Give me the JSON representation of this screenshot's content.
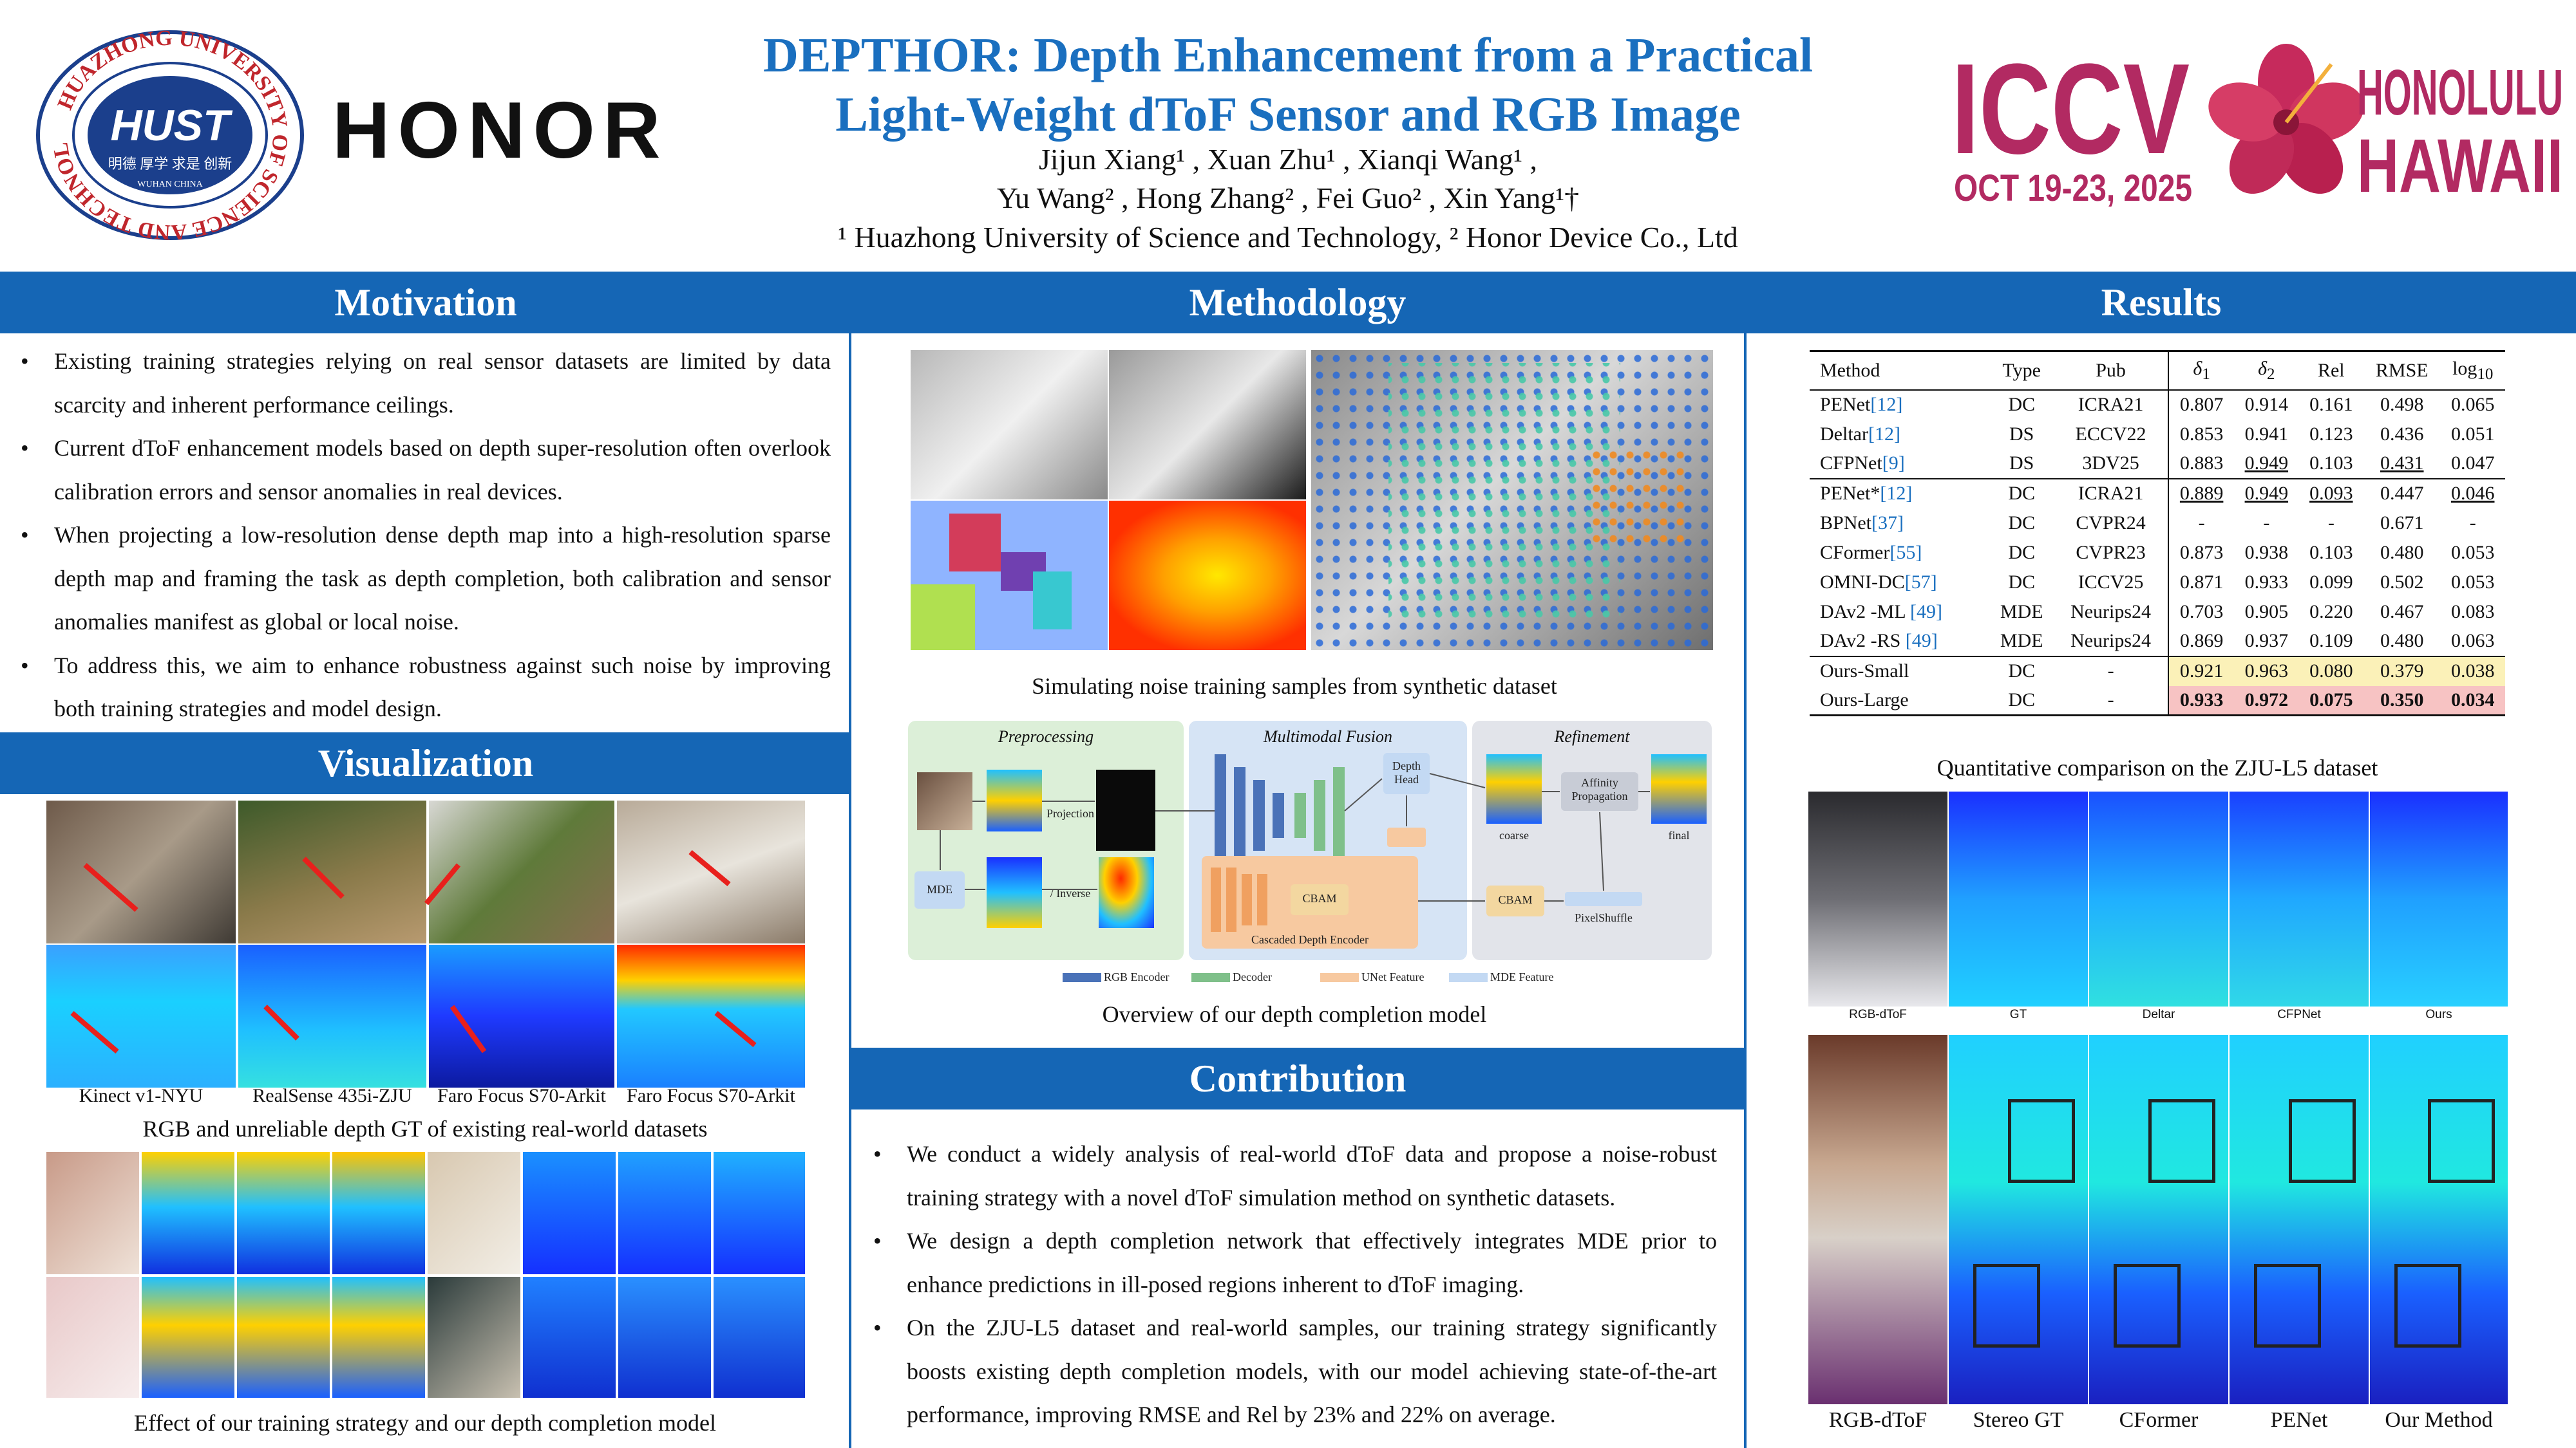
{
  "header": {
    "title_line1": "DEPTHOR: Depth Enhancement from a Practical",
    "title_line2": "Light-Weight dToF Sensor and RGB Image",
    "authors_line1": "Jijun Xiang¹ , Xuan Zhu¹ , Xianqi Wang¹ ,",
    "authors_line2": "Yu Wang² , Hong Zhang² , Fei Guo² , Xin Yang¹†",
    "affiliations": "¹ Huazhong University of Science and Technology, ² Honor Device Co., Ltd",
    "hust_logo_text": "HUST",
    "hust_logo_motto": "明德 厚学 求是 创新",
    "hust_logo_city": "WUHAN CHINA",
    "hust_logo_ring": "HUAZHONG UNIVERSITY OF SCIENCE AND TECHNOLOGY",
    "honor_logo": "HONOR",
    "iccv_logo": "ICCV",
    "iccv_dates": "OCT 19-23, 2025",
    "iccv_city": "HONOLULU",
    "iccv_state": "HAWAII"
  },
  "motivation": {
    "heading": "Motivation",
    "bullets": [
      "Existing training strategies relying on real sensor datasets are limited by data scarcity and inherent performance ceilings.",
      "Current dToF enhancement models based on depth super-resolution often overlook calibration errors and sensor anomalies in real devices.",
      "When projecting a low-resolution dense depth map into a high-resolution sparse depth map and framing the task as depth completion, both calibration and sensor anomalies manifest as global or local noise.",
      "To address this, we aim to enhance robustness against such noise by improving both training strategies and model design."
    ]
  },
  "visualization": {
    "heading": "Visualization",
    "datasets": [
      "Kinect v1-NYU",
      "RealSense 435i-ZJU",
      "Faro Focus S70-Arkit",
      "Faro Focus S70-Arkit"
    ],
    "caption1": "RGB and unreliable depth GT of existing real-world datasets",
    "caption2": "Effect of our training strategy and our depth completion model"
  },
  "methodology": {
    "heading": "Methodology",
    "caption1": "Simulating noise training samples from synthetic dataset",
    "caption2": "Overview of our depth completion model",
    "diagram": {
      "stage1": "Preprocessing",
      "stage2": "Multimodal Fusion",
      "stage3": "Refinement",
      "projection": "Projection",
      "mde": "MDE",
      "inverse": "/ Inverse",
      "cbam1": "CBAM",
      "cascaded": "Cascaded Depth Encoder",
      "depth_head": "Depth Head",
      "cbam2": "CBAM",
      "affinity": "Affinity Propagation",
      "pixelshuffle": "PixelShuffle",
      "coarse": "coarse",
      "final": "final",
      "legend": [
        "RGB Encoder",
        "Decoder",
        "UNet Feature",
        "MDE Feature"
      ]
    }
  },
  "contribution": {
    "heading": "Contribution",
    "bullets": [
      "We conduct a widely analysis of real-world dToF data and propose a noise-robust training strategy with a novel dToF simulation method on synthetic datasets.",
      "We design a depth completion network that effectively integrates MDE prior to enhance predictions in ill-posed regions inherent to dToF imaging.",
      "On the ZJU-L5 dataset and real-world samples, our training strategy significantly boosts existing depth completion models, with our model achieving state-of-the-art performance, improving RMSE and Rel by 23% and 22% on average."
    ]
  },
  "results": {
    "heading": "Results",
    "table_caption": "Quantitative comparison on the ZJU-L5 dataset",
    "columns": [
      "Method",
      "Type",
      "Pub",
      "δ",
      "δ",
      "Rel",
      "RMSE",
      "log"
    ],
    "col_sub": [
      "",
      "",
      "",
      "1",
      "2",
      "",
      "",
      "10"
    ],
    "rows": [
      {
        "m": "PENet",
        "c": "[12]",
        "type": "DC",
        "pub": "ICRA21",
        "d1": "0.807",
        "d2": "0.914",
        "rel": "0.161",
        "rmse": "0.498",
        "log": "0.065"
      },
      {
        "m": "Deltar",
        "c": "[12]",
        "type": "DS",
        "pub": "ECCV22",
        "d1": "0.853",
        "d2": "0.941",
        "rel": "0.123",
        "rmse": "0.436",
        "log": "0.051"
      },
      {
        "m": "CFPNet",
        "c": "[9]",
        "type": "DS",
        "pub": "3DV25",
        "d1": "0.883",
        "d2": "0.949",
        "rel": "0.103",
        "rmse": "0.431",
        "log": "0.047"
      },
      {
        "m": "PENet*",
        "c": "[12]",
        "type": "DC",
        "pub": "ICRA21",
        "d1": "0.889",
        "d2": "0.949",
        "rel": "0.093",
        "rmse": "0.447",
        "log": "0.046"
      },
      {
        "m": "BPNet",
        "c": "[37]",
        "type": "DC",
        "pub": "CVPR24",
        "d1": "-",
        "d2": "-",
        "rel": "-",
        "rmse": "0.671",
        "log": "-"
      },
      {
        "m": "CFormer",
        "c": "[55]",
        "type": "DC",
        "pub": "CVPR23",
        "d1": "0.873",
        "d2": "0.938",
        "rel": "0.103",
        "rmse": "0.480",
        "log": "0.053"
      },
      {
        "m": "OMNI-DC",
        "c": "[57]",
        "type": "DC",
        "pub": "ICCV25",
        "d1": "0.871",
        "d2": "0.933",
        "rel": "0.099",
        "rmse": "0.502",
        "log": "0.053"
      },
      {
        "m": "DAv2 -ML ",
        "c": "[49]",
        "type": "MDE",
        "pub": "Neurips24",
        "d1": "0.703",
        "d2": "0.905",
        "rel": "0.220",
        "rmse": "0.467",
        "log": "0.083"
      },
      {
        "m": "DAv2 -RS ",
        "c": "[49]",
        "type": "MDE",
        "pub": "Neurips24",
        "d1": "0.869",
        "d2": "0.937",
        "rel": "0.109",
        "rmse": "0.480",
        "log": "0.063"
      },
      {
        "m": "Ours-Small",
        "c": "",
        "type": "DC",
        "pub": "-",
        "d1": "0.921",
        "d2": "0.963",
        "rel": "0.080",
        "rmse": "0.379",
        "log": "0.038"
      },
      {
        "m": "Ours-Large",
        "c": "",
        "type": "DC",
        "pub": "-",
        "d1": "0.933",
        "d2": "0.972",
        "rel": "0.075",
        "rmse": "0.350",
        "log": "0.034"
      }
    ],
    "strip1_labels": [
      "RGB-dToF",
      "GT",
      "Deltar",
      "CFPNet",
      "Ours"
    ],
    "strip2_labels": [
      "RGB-dToF",
      "Stereo GT",
      "CFormer",
      "PENet",
      "Our Method"
    ]
  },
  "colors": {
    "accent": "#1566b5",
    "title": "#1a6fbf",
    "iccv": "#b22a62",
    "highlight_small": "#fbf1b8",
    "highlight_large": "#f7c3c3"
  }
}
